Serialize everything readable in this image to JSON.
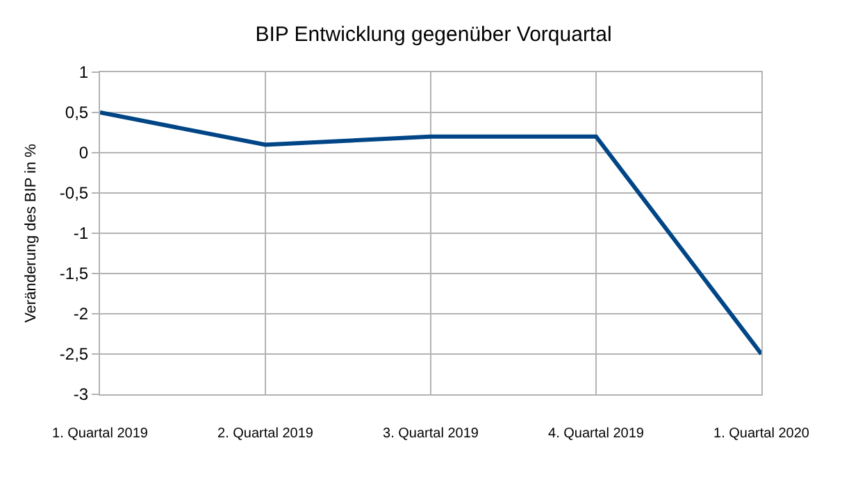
{
  "chart_data": {
    "type": "line",
    "title": "BIP Entwicklung gegenüber Vorquartal",
    "ylabel": "Veränderung des BIP in %",
    "categories": [
      "1. Quartal 2019",
      "2. Quartal 2019",
      "3. Quartal 2019",
      "4. Quartal 2019",
      "1. Quartal 2020"
    ],
    "series": [
      {
        "color": "#004586",
        "values": [
          0.5,
          0.1,
          0.2,
          0.2,
          -2.5
        ]
      }
    ],
    "ylim": [
      -3,
      1
    ],
    "yticks": [
      1,
      {
        "value": 0.5,
        "label": "0,5"
      },
      0,
      {
        "value": -0.5,
        "label": "-0,5"
      },
      -1,
      {
        "value": -1.5,
        "label": "-1,5"
      },
      -2,
      {
        "value": -2.5,
        "label": "-2,5"
      },
      -3
    ],
    "grid": true,
    "marker": "none",
    "line_style": "solid"
  }
}
